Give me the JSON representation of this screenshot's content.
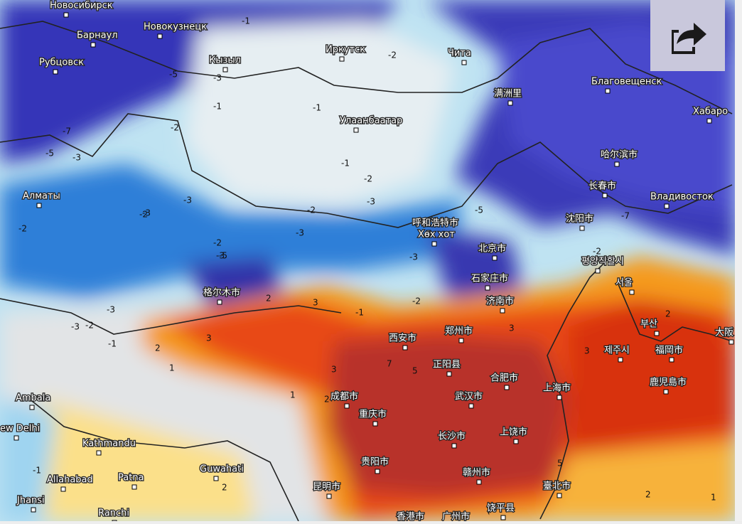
{
  "map": {
    "cities": [
      "Новосибирск",
      "Барнаул",
      "Новокузнецк",
      "Рубцовск",
      "Кызыл",
      "Иркутск",
      "Чита",
      "Благовещенск",
      "Хабаро",
      "满洲里",
      "Улаанбаатар",
      "哈尔滨市",
      "长春市",
      "Владивосток",
      "Алматы",
      "呼和浩特市",
      "Хөх хот",
      "沈阳市",
      "평양직할시",
      "서울",
      "北京市",
      "石家庄市",
      "济南市",
      "格尔木市",
      "西安市",
      "郑州市",
      "부산",
      "大阪",
      "제주시",
      "福岡市",
      "正阳县",
      "合肥市",
      "上海市",
      "鹿児島市",
      "成都市",
      "武汉市",
      "重庆市",
      "Ambala",
      "ew Delhi",
      "长沙市",
      "上饶市",
      "Kathmandu",
      "贵阳市",
      "Guwahati",
      "赣州市",
      "Allahabad",
      "Patna",
      "昆明市",
      "臺北市",
      "Jhansi",
      "Ranchi",
      "饶平县",
      "香港市",
      "广州市"
    ],
    "contour_labels": [
      "-1",
      "-3",
      "-2",
      "-1",
      "-3",
      "-5",
      "-7",
      "-5",
      "-3",
      "-1",
      "-2",
      "-1",
      "-2",
      "-3",
      "-2",
      "-3",
      "-2",
      "-3",
      "-5",
      "-3",
      "-5",
      "-3",
      "-7",
      "-2",
      "-2",
      "-3",
      "-3",
      "-2",
      "-1",
      "2",
      "3",
      "2",
      "1",
      "2",
      "3",
      "3",
      "7",
      "5",
      "3",
      "3",
      "5",
      "2",
      "1",
      "1",
      "2",
      "2",
      "-1",
      "-2",
      "-1",
      "-2"
    ]
  }
}
